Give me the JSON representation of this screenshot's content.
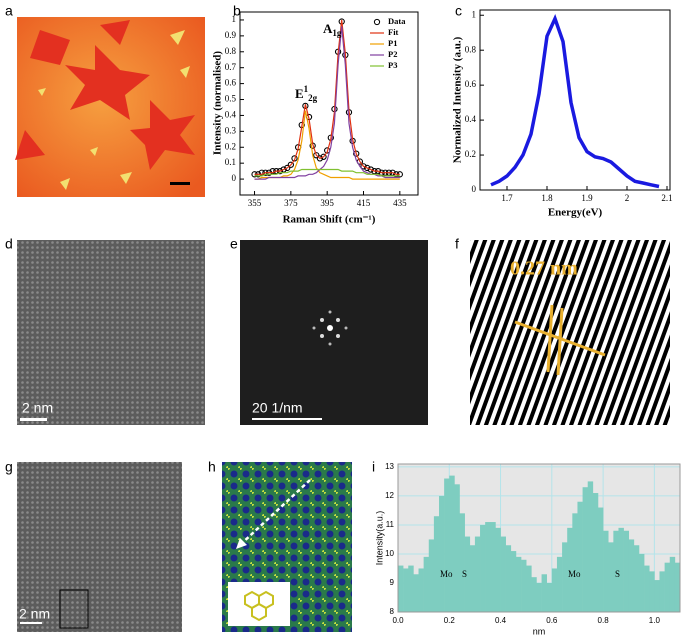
{
  "figure": {
    "panel_labels": [
      "a",
      "b",
      "c",
      "d",
      "e",
      "f",
      "g",
      "h",
      "i"
    ],
    "scale_labels": {
      "d": "2 nm",
      "e": "20 1/nm",
      "f": "0.27 nm",
      "g": "2 nm"
    }
  },
  "chart_data": [
    {
      "type": "line",
      "xlabel": "Raman Shift (cm⁻¹)",
      "ylabel": "Intensity (normalised)",
      "x": [
        355,
        357,
        359,
        361,
        363,
        365,
        367,
        369,
        371,
        373,
        375,
        377,
        379,
        381,
        383,
        385,
        387,
        389,
        391,
        393,
        395,
        397,
        399,
        401,
        403,
        405,
        407,
        409,
        411,
        413,
        415,
        417,
        419,
        421,
        423,
        425,
        427,
        429,
        431,
        433,
        435
      ],
      "series": [
        {
          "name": "Data",
          "color": "#000000",
          "marker": "circle",
          "values": [
            0.03,
            0.03,
            0.04,
            0.04,
            0.04,
            0.05,
            0.05,
            0.05,
            0.06,
            0.07,
            0.09,
            0.13,
            0.2,
            0.34,
            0.46,
            0.39,
            0.21,
            0.15,
            0.13,
            0.14,
            0.18,
            0.26,
            0.44,
            0.8,
            0.99,
            0.78,
            0.42,
            0.24,
            0.16,
            0.11,
            0.08,
            0.07,
            0.06,
            0.05,
            0.05,
            0.04,
            0.04,
            0.04,
            0.04,
            0.03,
            0.03
          ]
        },
        {
          "name": "Fit",
          "color": "#e03010",
          "values": [
            0.03,
            0.03,
            0.03,
            0.04,
            0.04,
            0.04,
            0.05,
            0.05,
            0.06,
            0.07,
            0.09,
            0.12,
            0.19,
            0.33,
            0.47,
            0.38,
            0.22,
            0.15,
            0.13,
            0.14,
            0.17,
            0.25,
            0.42,
            0.79,
            1.0,
            0.79,
            0.43,
            0.25,
            0.16,
            0.11,
            0.08,
            0.07,
            0.06,
            0.05,
            0.05,
            0.04,
            0.04,
            0.04,
            0.04,
            0.03,
            0.03
          ]
        },
        {
          "name": "P1",
          "color": "#f0a000",
          "values": [
            0,
            0,
            0.01,
            0.01,
            0.01,
            0.01,
            0.01,
            0.01,
            0.02,
            0.02,
            0.03,
            0.06,
            0.12,
            0.24,
            0.43,
            0.32,
            0.15,
            0.07,
            0.04,
            0.03,
            0.02,
            0.01,
            0.01,
            0.01,
            0.01,
            0.01,
            0.01,
            0,
            0,
            0,
            0,
            0,
            0,
            0,
            0,
            0,
            0,
            0,
            0,
            0,
            0
          ]
        },
        {
          "name": "P2",
          "color": "#8040a0",
          "values": [
            0,
            0,
            0,
            0,
            0.01,
            0.01,
            0.01,
            0.01,
            0.01,
            0.01,
            0.01,
            0.01,
            0.02,
            0.02,
            0.02,
            0.03,
            0.03,
            0.04,
            0.06,
            0.08,
            0.12,
            0.2,
            0.35,
            0.72,
            0.96,
            0.72,
            0.35,
            0.2,
            0.12,
            0.08,
            0.05,
            0.04,
            0.03,
            0.03,
            0.02,
            0.02,
            0.01,
            0.01,
            0.01,
            0.01,
            0.01
          ]
        },
        {
          "name": "P3",
          "color": "#80c030",
          "values": [
            0.02,
            0.02,
            0.02,
            0.03,
            0.03,
            0.03,
            0.03,
            0.04,
            0.04,
            0.04,
            0.05,
            0.05,
            0.05,
            0.06,
            0.06,
            0.06,
            0.06,
            0.06,
            0.06,
            0.06,
            0.06,
            0.06,
            0.06,
            0.06,
            0.05,
            0.05,
            0.05,
            0.05,
            0.04,
            0.04,
            0.04,
            0.03,
            0.03,
            0.03,
            0.03,
            0.02,
            0.02,
            0.02,
            0.02,
            0.02,
            0.02
          ]
        }
      ],
      "annotations": [
        {
          "text": "E",
          "sup": "1",
          "sub": "2g"
        },
        {
          "text": "A",
          "sub": "1g"
        }
      ],
      "xlim": [
        347,
        445
      ],
      "xticks": [
        355,
        375,
        395,
        415,
        435
      ],
      "ylim": [
        -0.1,
        1.05
      ],
      "yticks": [
        0,
        0.1,
        0.2,
        0.3,
        0.4,
        0.5,
        0.6,
        0.7,
        0.8,
        0.9,
        1
      ],
      "legend": "upper right"
    },
    {
      "type": "line",
      "xlabel": "Energy(eV)",
      "ylabel": "Normalized Intensity (a.u.)",
      "x": [
        1.66,
        1.68,
        1.7,
        1.72,
        1.74,
        1.76,
        1.78,
        1.8,
        1.82,
        1.84,
        1.86,
        1.88,
        1.9,
        1.92,
        1.94,
        1.96,
        1.98,
        2.0,
        2.02,
        2.04,
        2.06,
        2.08
      ],
      "series": [
        {
          "color": "#1a1ae0",
          "values": [
            0.03,
            0.05,
            0.08,
            0.13,
            0.2,
            0.32,
            0.55,
            0.88,
            0.98,
            0.85,
            0.5,
            0.3,
            0.22,
            0.19,
            0.18,
            0.16,
            0.12,
            0.08,
            0.05,
            0.04,
            0.03,
            0.02
          ]
        }
      ],
      "xlim": [
        1.6325,
        2.1075
      ],
      "xticks": [
        1.7,
        1.8,
        1.9,
        2.0,
        2.1
      ],
      "ylim": [
        0,
        1.03
      ],
      "yticks": [
        0,
        0.2,
        0.4,
        0.6,
        0.8,
        1
      ]
    },
    {
      "type": "histogram",
      "xlabel": "nm",
      "ylabel": "Intensity(a.u.)",
      "color": "#7ecdc0",
      "grid": true,
      "bins": [
        0,
        0.02,
        0.04,
        0.06,
        0.08,
        0.1,
        0.12,
        0.14,
        0.16,
        0.18,
        0.2,
        0.22,
        0.24,
        0.26,
        0.28,
        0.3,
        0.32,
        0.34,
        0.36,
        0.38,
        0.4,
        0.42,
        0.44,
        0.46,
        0.48,
        0.5,
        0.52,
        0.54,
        0.56,
        0.58,
        0.6,
        0.62,
        0.64,
        0.66,
        0.68,
        0.7,
        0.72,
        0.74,
        0.76,
        0.78,
        0.8,
        0.82,
        0.84,
        0.86,
        0.88,
        0.9,
        0.92,
        0.94,
        0.96,
        0.98,
        1.0,
        1.02,
        1.04,
        1.06,
        1.08,
        1.1
      ],
      "values": [
        9.6,
        9.5,
        9.6,
        9.3,
        9.5,
        9.9,
        10.5,
        11.3,
        12.0,
        12.6,
        12.7,
        12.4,
        11.4,
        10.6,
        10.3,
        10.6,
        11.0,
        11.1,
        11.1,
        10.9,
        10.6,
        10.3,
        10.1,
        9.9,
        9.8,
        9.6,
        9.2,
        9.0,
        9.3,
        9.0,
        9.5,
        9.9,
        10.4,
        10.9,
        11.4,
        11.8,
        12.3,
        12.5,
        12.1,
        11.6,
        10.8,
        10.4,
        10.8,
        10.9,
        10.8,
        10.5,
        10.3,
        10.0,
        9.6,
        9.4,
        9.1,
        9.4,
        9.7,
        9.9,
        9.7
      ],
      "annotations": [
        "Mo",
        "S",
        "Mo",
        "S"
      ],
      "xlim": [
        0,
        1.1
      ],
      "xticks": [
        {
          "value": 0,
          "label": "0.0"
        },
        0.2,
        0.4,
        0.6,
        0.8,
        {
          "value": 1,
          "label": "1.0"
        }
      ],
      "ylim": [
        8,
        13.1
      ],
      "yticks": [
        8,
        9,
        10,
        11,
        12,
        13
      ]
    }
  ]
}
